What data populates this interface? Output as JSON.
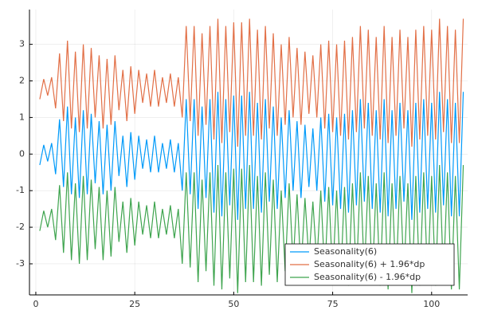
{
  "chart_data": {
    "type": "line",
    "x": [
      1,
      2,
      3,
      4,
      5,
      6,
      7,
      8,
      9,
      10,
      11,
      12,
      13,
      14,
      15,
      16,
      17,
      18,
      19,
      20,
      21,
      22,
      23,
      24,
      25,
      26,
      27,
      28,
      29,
      30,
      31,
      32,
      33,
      34,
      35,
      36,
      37,
      38,
      39,
      40,
      41,
      42,
      43,
      44,
      45,
      46,
      47,
      48,
      49,
      50,
      51,
      52,
      53,
      54,
      55,
      56,
      57,
      58,
      59,
      60,
      61,
      62,
      63,
      64,
      65,
      66,
      67,
      68,
      69,
      70,
      71,
      72,
      73,
      74,
      75,
      76,
      77,
      78,
      79,
      80,
      81,
      82,
      83,
      84,
      85,
      86,
      87,
      88,
      89,
      90,
      91,
      92,
      93,
      94,
      95,
      96,
      97,
      98,
      99,
      100,
      101,
      102,
      103,
      104,
      105,
      106,
      107,
      108
    ],
    "series": [
      {
        "name": "Seasonality(6)",
        "color": "#009af9",
        "values": [
          -0.3,
          0.25,
          -0.2,
          0.3,
          -0.55,
          0.95,
          -0.9,
          1.3,
          -1.1,
          1.0,
          -1.2,
          1.2,
          -1.1,
          1.1,
          -0.8,
          0.9,
          -1.1,
          0.8,
          -1.0,
          0.9,
          -0.6,
          0.5,
          -0.9,
          0.6,
          -0.7,
          0.5,
          -0.4,
          0.4,
          -0.5,
          0.5,
          -0.5,
          0.3,
          -0.4,
          0.4,
          -0.5,
          0.3,
          -1.0,
          1.5,
          -1.1,
          1.5,
          -1.5,
          1.3,
          -1.2,
          1.5,
          -1.6,
          1.7,
          -1.7,
          1.5,
          -1.4,
          1.6,
          -1.8,
          1.6,
          -1.5,
          1.7,
          -1.5,
          1.4,
          -1.6,
          1.5,
          -1.3,
          1.3,
          -1.5,
          1.0,
          -1.2,
          1.2,
          -1.0,
          0.9,
          -1.2,
          0.8,
          -0.9,
          0.7,
          -1.0,
          1.0,
          -1.3,
          1.1,
          -1.4,
          1.0,
          -1.5,
          1.1,
          -1.6,
          1.2,
          -1.4,
          1.5,
          -1.3,
          1.4,
          -1.5,
          1.2,
          -1.6,
          1.5,
          -1.7,
          1.2,
          -1.5,
          1.4,
          -1.3,
          1.2,
          -1.8,
          1.4,
          -1.6,
          1.5,
          -1.5,
          1.4,
          -1.6,
          1.7,
          -1.4,
          1.5,
          -1.7,
          1.4,
          -1.7,
          1.7
        ]
      },
      {
        "name": "Seasonality(6) + 1.96*dp",
        "color": "#e26f46",
        "values": [
          1.5,
          2.05,
          1.6,
          2.1,
          1.25,
          2.75,
          0.9,
          3.1,
          0.7,
          2.8,
          0.6,
          3.0,
          0.7,
          2.9,
          1.0,
          2.7,
          0.7,
          2.6,
          0.8,
          2.7,
          1.2,
          2.3,
          0.9,
          2.4,
          1.1,
          2.3,
          1.4,
          2.2,
          1.3,
          2.3,
          1.3,
          2.1,
          1.4,
          2.2,
          1.3,
          2.1,
          1.0,
          3.5,
          0.9,
          3.5,
          0.5,
          3.3,
          0.8,
          3.5,
          0.4,
          3.7,
          0.3,
          3.5,
          0.6,
          3.6,
          0.2,
          3.6,
          0.5,
          3.7,
          0.5,
          3.4,
          0.4,
          3.5,
          0.7,
          3.3,
          0.5,
          3.0,
          0.8,
          3.2,
          1.0,
          2.9,
          0.8,
          2.8,
          1.1,
          2.7,
          1.0,
          3.0,
          0.7,
          3.1,
          0.6,
          3.0,
          0.5,
          3.1,
          0.4,
          3.2,
          0.6,
          3.5,
          0.7,
          3.4,
          0.5,
          3.2,
          0.4,
          3.5,
          0.3,
          3.2,
          0.5,
          3.4,
          0.7,
          3.2,
          0.2,
          3.4,
          0.4,
          3.5,
          0.5,
          3.4,
          0.4,
          3.7,
          0.6,
          3.5,
          0.3,
          3.4,
          0.3,
          3.7
        ]
      },
      {
        "name": "Seasonality(6) - 1.96*dp",
        "color": "#3ea44e",
        "values": [
          -2.1,
          -1.55,
          -2.0,
          -1.5,
          -2.35,
          -0.85,
          -2.7,
          -0.5,
          -2.9,
          -0.8,
          -3.0,
          -0.6,
          -2.9,
          -0.7,
          -2.6,
          -0.9,
          -2.9,
          -1.0,
          -2.8,
          -0.9,
          -2.4,
          -1.3,
          -2.7,
          -1.2,
          -2.5,
          -1.3,
          -2.2,
          -1.4,
          -2.3,
          -1.3,
          -2.3,
          -1.5,
          -2.2,
          -1.4,
          -2.3,
          -1.5,
          -3.0,
          -0.5,
          -3.1,
          -0.5,
          -3.5,
          -0.7,
          -3.2,
          -0.5,
          -3.6,
          -0.3,
          -3.7,
          -0.5,
          -3.4,
          -0.4,
          -3.8,
          -0.4,
          -3.5,
          -0.3,
          -3.5,
          -0.6,
          -3.6,
          -0.5,
          -3.3,
          -0.7,
          -3.5,
          -1.0,
          -3.2,
          -0.8,
          -3.0,
          -1.1,
          -3.2,
          -1.2,
          -2.9,
          -1.3,
          -3.0,
          -1.0,
          -3.3,
          -0.9,
          -3.4,
          -1.0,
          -3.5,
          -0.9,
          -3.6,
          -0.8,
          -3.4,
          -0.5,
          -3.3,
          -0.6,
          -3.5,
          -0.8,
          -3.6,
          -0.5,
          -3.7,
          -0.8,
          -3.5,
          -0.6,
          -3.3,
          -0.8,
          -3.8,
          -0.6,
          -3.6,
          -0.5,
          -3.5,
          -0.6,
          -3.6,
          -0.3,
          -3.4,
          -0.5,
          -3.7,
          -0.6,
          -3.7,
          -0.3
        ]
      }
    ],
    "xlim": [
      -1.6,
      109.1
    ],
    "ylim": [
      -3.85,
      3.95
    ],
    "xticks": [
      0,
      25,
      50,
      75,
      100
    ],
    "yticks": [
      -3,
      -2,
      -1,
      0,
      1,
      2,
      3
    ],
    "grid": true,
    "legend": "bottom-right"
  }
}
